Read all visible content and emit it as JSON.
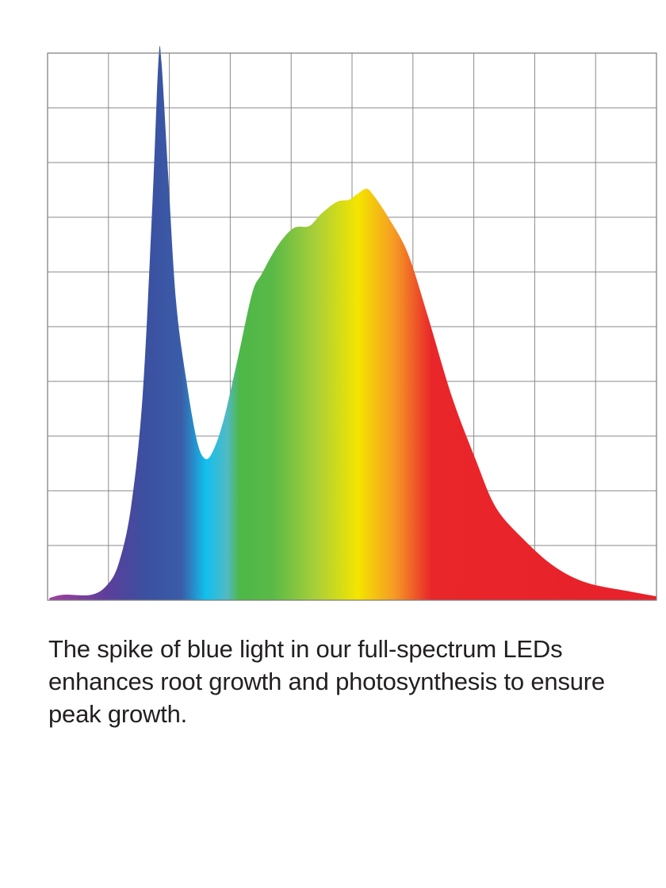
{
  "chart_data": {
    "type": "area",
    "title": "",
    "xlabel": "",
    "ylabel": "",
    "xlim": [
      0,
      10
    ],
    "ylim": [
      0,
      10
    ],
    "grid": true,
    "grid_divisions": {
      "x": 10,
      "y": 10
    },
    "fill": "spectrum gradient (violet → blue → cyan → green → yellow → orange → red)",
    "gradient_colors": [
      {
        "x": 0.0,
        "color": "#a33f9e"
      },
      {
        "x": 1.0,
        "color": "#5b3f9b"
      },
      {
        "x": 1.6,
        "color": "#3b50a0"
      },
      {
        "x": 2.2,
        "color": "#3a5ca8"
      },
      {
        "x": 2.6,
        "color": "#12c0ee"
      },
      {
        "x": 2.95,
        "color": "#52b9c4"
      },
      {
        "x": 3.15,
        "color": "#4db848"
      },
      {
        "x": 3.7,
        "color": "#5ab947"
      },
      {
        "x": 4.4,
        "color": "#a8cf39"
      },
      {
        "x": 5.1,
        "color": "#f4e500"
      },
      {
        "x": 5.7,
        "color": "#f59a25"
      },
      {
        "x": 6.3,
        "color": "#e9262a"
      },
      {
        "x": 10.0,
        "color": "#e8202a"
      }
    ],
    "series": [
      {
        "x": [
          0.03,
          0.26,
          0.72,
          0.98,
          1.17,
          1.37,
          1.56,
          1.72,
          1.82,
          1.87,
          1.98,
          2.11,
          2.28,
          2.45,
          2.58,
          2.71,
          2.89,
          3.13,
          3.36,
          3.52,
          3.78,
          4.04,
          4.3,
          4.49,
          4.75,
          4.95,
          5.08,
          5.23,
          5.34,
          5.6,
          5.92,
          6.25,
          6.64,
          7.03,
          7.36,
          7.81,
          8.33,
          8.85,
          9.51,
          10.0
        ],
        "y": [
          0.04,
          0.1,
          0.1,
          0.28,
          0.68,
          1.7,
          3.72,
          7.2,
          9.84,
          9.84,
          7.78,
          5.46,
          4.01,
          2.93,
          2.59,
          2.71,
          3.29,
          4.45,
          5.61,
          5.97,
          6.48,
          6.8,
          6.84,
          7.06,
          7.28,
          7.32,
          7.42,
          7.52,
          7.42,
          6.99,
          6.33,
          5.17,
          3.72,
          2.57,
          1.7,
          1.12,
          0.61,
          0.32,
          0.17,
          0.07
        ]
      }
    ]
  },
  "caption": "The spike of blue light in our full-spectrum LEDs enhances root growth and photosynthesis to ensure peak growth."
}
